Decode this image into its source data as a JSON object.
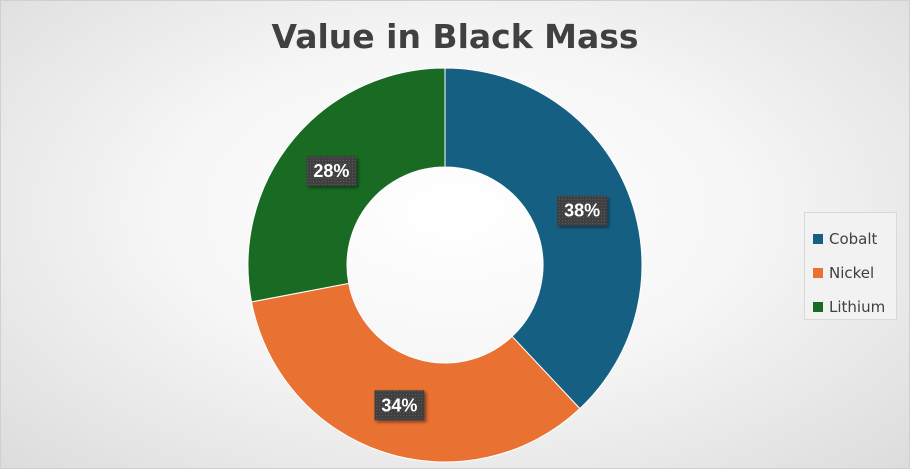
{
  "chart_data": {
    "type": "pie",
    "title": "Value in Black Mass",
    "categories": [
      "Cobalt",
      "Nickel",
      "Lithium"
    ],
    "values": [
      38,
      34,
      28
    ],
    "data_labels": [
      "38%",
      "34%",
      "28%"
    ],
    "colors": [
      "#156082",
      "#e97132",
      "#196b24"
    ],
    "donut": true,
    "legend_position": "right"
  }
}
